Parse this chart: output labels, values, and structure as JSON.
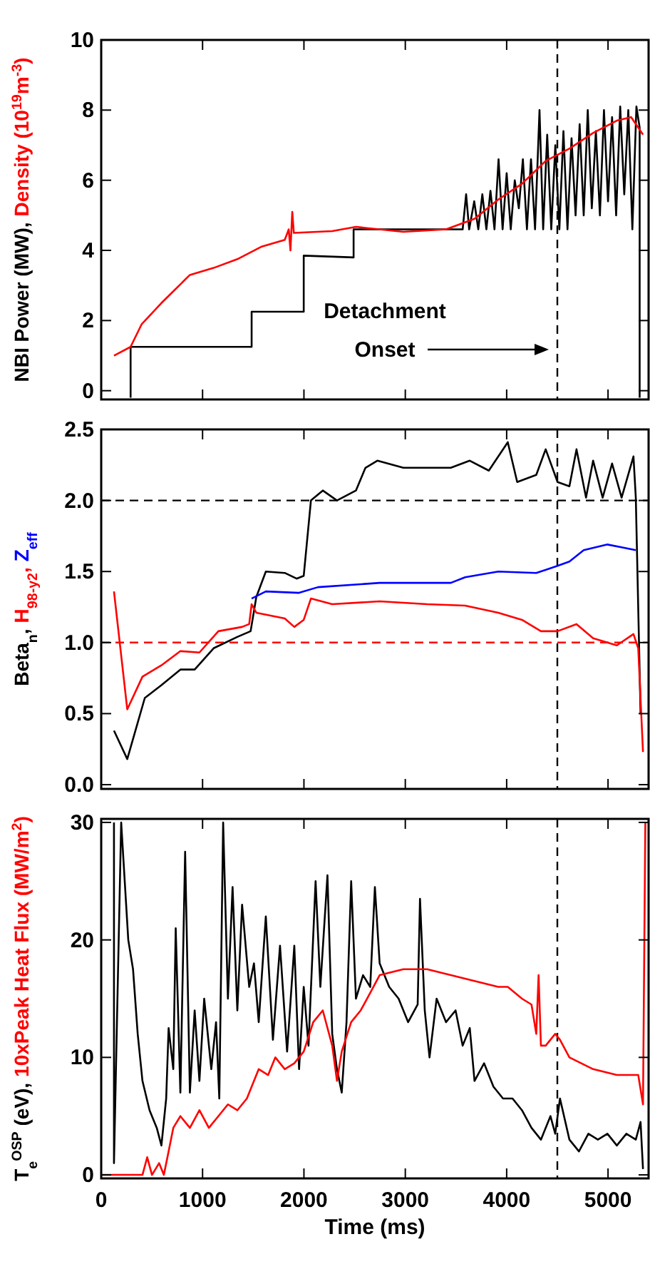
{
  "chart_data": [
    {
      "type": "line",
      "xlim": [
        0,
        5400
      ],
      "xticks": [
        0,
        1000,
        2000,
        3000,
        4000,
        5000
      ],
      "ylim": [
        -0.25,
        10
      ],
      "yticks": [
        0,
        2,
        4,
        6,
        8,
        10
      ],
      "tick_labels": "y",
      "grid": false,
      "series": [
        {
          "name": "NBI Power (MW),",
          "color": "#000000",
          "x": [
            290,
            290,
            1484,
            1484,
            1998,
            1998,
            2490,
            2490,
            3566,
            3600,
            3630,
            3680,
            3720,
            3760,
            3800,
            3840,
            3880,
            3920,
            3960,
            4000,
            4040,
            4080,
            4120,
            4160,
            4200,
            4240,
            4280,
            4324,
            4360,
            4400,
            4440,
            4480,
            4520,
            4560,
            4600,
            4640,
            4680,
            4720,
            4760,
            4800,
            4840,
            4880,
            4920,
            4960,
            5000,
            5040,
            5080,
            5120,
            5160,
            5200,
            5240,
            5280,
            5312,
            5312
          ],
          "values": [
            -0.2,
            1.25,
            1.25,
            2.25,
            2.25,
            3.85,
            3.8,
            4.6,
            4.6,
            5.6,
            4.6,
            5.4,
            4.6,
            5.6,
            4.6,
            5.7,
            4.6,
            6.6,
            4.6,
            6.2,
            4.6,
            6.0,
            5.2,
            6.6,
            4.6,
            6.6,
            4.6,
            8.0,
            4.6,
            7.3,
            4.6,
            7.0,
            4.6,
            7.4,
            4.6,
            7.2,
            5.0,
            7.6,
            5.0,
            8.0,
            5.2,
            7.4,
            5.0,
            8.0,
            5.4,
            7.8,
            5.0,
            8.1,
            5.6,
            8.0,
            4.6,
            8.1,
            7.5,
            -0.2
          ]
        },
        {
          "name": "Density (10$^{19}$m$^{-3}$)",
          "color": "#ff0000",
          "x": [
            126,
            290,
            400,
            594,
            875,
            1109,
            1343,
            1577,
            1811,
            1850,
            1867,
            1885,
            1900,
            2279,
            2513,
            2981,
            3402,
            3683,
            3917,
            4151,
            4385,
            4619,
            4853,
            5087,
            5228,
            5345
          ],
          "values": [
            1.0,
            1.25,
            1.9,
            2.5,
            3.3,
            3.5,
            3.75,
            4.1,
            4.3,
            4.6,
            4.0,
            5.1,
            4.5,
            4.55,
            4.67,
            4.53,
            4.6,
            4.9,
            5.45,
            5.9,
            6.55,
            6.9,
            7.35,
            7.7,
            7.8,
            7.3
          ]
        }
      ],
      "ref_lines": [
        {
          "axis": "x",
          "value": 4500,
          "color": "#000000",
          "line_style": "dashed"
        }
      ],
      "annotations": [
        "Detachment Onset"
      ]
    },
    {
      "type": "line",
      "xlim": [
        0,
        5400
      ],
      "xticks": [
        0,
        1000,
        2000,
        3000,
        4000,
        5000
      ],
      "ylim": [
        -0.03,
        2.5
      ],
      "yticks": [
        {
          "value": 0,
          "label": "0.0"
        },
        0.5,
        {
          "value": 1,
          "label": "1.0"
        },
        1.5,
        {
          "value": 2,
          "label": "2.0"
        },
        2.5
      ],
      "tick_labels": "y",
      "grid": false,
      "series": [
        {
          "name": "Beta$_{n}$,",
          "color": "#000000",
          "x": [
            126,
            257,
            430,
            594,
            781,
            922,
            1109,
            1343,
            1474,
            1530,
            1624,
            1811,
            1928,
            1998,
            2069,
            2186,
            2326,
            2513,
            2607,
            2724,
            2981,
            3449,
            3636,
            3824,
            4011,
            4104,
            4292,
            4385,
            4502,
            4619,
            4689,
            4783,
            4853,
            4947,
            5040,
            5134,
            5251,
            5274,
            5321
          ],
          "values": [
            0.38,
            0.18,
            0.61,
            0.7,
            0.81,
            0.81,
            0.96,
            1.04,
            1.08,
            1.32,
            1.5,
            1.49,
            1.45,
            1.47,
            2.0,
            2.07,
            2.0,
            2.07,
            2.23,
            2.28,
            2.23,
            2.23,
            2.28,
            2.21,
            2.41,
            2.13,
            2.18,
            2.36,
            2.13,
            2.1,
            2.36,
            2.02,
            2.28,
            2.02,
            2.26,
            2.02,
            2.31,
            2.02,
            0.5
          ]
        },
        {
          "name": "H$_{98-y2}$,",
          "color": "#ff0000",
          "x": [
            126,
            257,
            407,
            594,
            781,
            969,
            1156,
            1390,
            1460,
            1484,
            1530,
            1811,
            1905,
            1998,
            2069,
            2279,
            2747,
            3215,
            3590,
            3917,
            4151,
            4338,
            4502,
            4689,
            4853,
            5087,
            5251,
            5298,
            5345
          ],
          "values": [
            1.36,
            0.53,
            0.76,
            0.84,
            0.94,
            0.93,
            1.08,
            1.11,
            1.13,
            1.27,
            1.21,
            1.17,
            1.11,
            1.16,
            1.31,
            1.27,
            1.29,
            1.27,
            1.26,
            1.21,
            1.16,
            1.08,
            1.08,
            1.13,
            1.03,
            0.98,
            1.06,
            0.96,
            0.23
          ]
        },
        {
          "name": "Z$_{eff}$",
          "color": "#0000ff",
          "x": [
            1484,
            1624,
            1952,
            2139,
            2747,
            3449,
            3590,
            3917,
            4292,
            4502,
            4619,
            4760,
            4994,
            5134,
            5274
          ],
          "values": [
            1.31,
            1.36,
            1.35,
            1.39,
            1.42,
            1.42,
            1.46,
            1.5,
            1.49,
            1.54,
            1.57,
            1.65,
            1.69,
            1.67,
            1.65
          ]
        }
      ],
      "ref_lines": [
        {
          "axis": "x",
          "value": 4500,
          "color": "#000000",
          "line_style": "dashed"
        },
        {
          "axis": "y",
          "value": 2.0,
          "color": "#000000",
          "line_style": "dashed"
        },
        {
          "axis": "y",
          "value": 1.0,
          "color": "#ff0000",
          "line_style": "dashed"
        }
      ]
    },
    {
      "type": "line",
      "xlabel": "Time (ms)",
      "xlim": [
        0,
        5400
      ],
      "xticks": [
        0,
        1000,
        2000,
        3000,
        4000,
        5000
      ],
      "ylim": [
        -0.3,
        30.3
      ],
      "yticks": [
        0,
        10,
        20,
        30
      ],
      "grid": false,
      "series": [
        {
          "name": "T$_{e}$$^{OSP}$ (eV),",
          "color": "#000000",
          "x": [
            126,
            126,
            197,
            267,
            314,
            360,
            407,
            477,
            548,
            594,
            641,
            665,
            711,
            735,
            781,
            828,
            875,
            922,
            969,
            1016,
            1086,
            1133,
            1165,
            1203,
            1250,
            1296,
            1343,
            1390,
            1460,
            1507,
            1554,
            1624,
            1694,
            1764,
            1834,
            1905,
            1952,
            1998,
            2045,
            2115,
            2162,
            2232,
            2279,
            2326,
            2373,
            2420,
            2466,
            2513,
            2583,
            2654,
            2700,
            2747,
            2841,
            2934,
            3028,
            3122,
            3145,
            3192,
            3239,
            3309,
            3402,
            3496,
            3566,
            3636,
            3683,
            3777,
            3870,
            3964,
            4058,
            4151,
            4245,
            4338,
            4432,
            4479,
            4526,
            4619,
            4713,
            4806,
            4900,
            4994,
            5087,
            5181,
            5274,
            5321,
            5345
          ],
          "values": [
            30,
            1,
            30,
            20,
            17.5,
            12,
            8,
            5.5,
            4,
            2.5,
            6.5,
            12.5,
            9,
            21,
            7,
            27.5,
            7,
            14,
            8,
            15,
            9,
            13,
            6.5,
            30,
            15,
            24.5,
            14,
            23,
            16,
            18,
            13,
            22,
            11.5,
            19.5,
            10.5,
            19.5,
            9,
            16,
            11,
            25,
            16,
            25.5,
            12,
            9,
            7,
            13,
            25,
            15,
            17,
            16,
            24.5,
            18,
            16,
            15,
            13,
            14.5,
            23.5,
            14,
            10,
            15,
            13,
            14,
            11,
            12.5,
            8,
            9.5,
            7.5,
            6.5,
            6.5,
            5.5,
            4,
            3,
            5,
            3.5,
            6.5,
            3,
            2,
            3.5,
            3,
            3.5,
            2.5,
            3.5,
            3,
            4.5,
            0.5
          ]
        },
        {
          "name": "10xPeak Heat Flux (MW/m$^{2}$)",
          "color": "#ff0000",
          "x": [
            0,
            407,
            454,
            501,
            571,
            618,
            665,
            711,
            781,
            875,
            969,
            1062,
            1156,
            1250,
            1343,
            1437,
            1554,
            1647,
            1718,
            1811,
            1905,
            1998,
            2092,
            2186,
            2279,
            2326,
            2373,
            2466,
            2560,
            2654,
            2747,
            2981,
            3215,
            3449,
            3683,
            3917,
            4011,
            4151,
            4245,
            4292,
            4315,
            4338,
            4385,
            4479,
            4526,
            4619,
            4853,
            5087,
            5298,
            5345,
            5368
          ],
          "values": [
            0,
            0,
            1.5,
            0,
            1,
            0,
            2,
            4,
            5,
            4,
            5.5,
            4,
            5,
            6,
            5.5,
            6.5,
            9,
            8.5,
            10,
            9,
            9.5,
            10.5,
            13,
            14,
            11,
            8,
            10.5,
            13,
            14,
            15.5,
            17,
            17.5,
            17.5,
            17,
            16.5,
            16,
            16,
            15,
            14.5,
            12,
            17,
            11,
            11,
            12,
            11.5,
            10,
            9,
            8.5,
            8.5,
            6,
            30
          ]
        }
      ],
      "ref_lines": [
        {
          "axis": "x",
          "value": 4500,
          "color": "#000000",
          "line_style": "dashed"
        }
      ]
    }
  ]
}
